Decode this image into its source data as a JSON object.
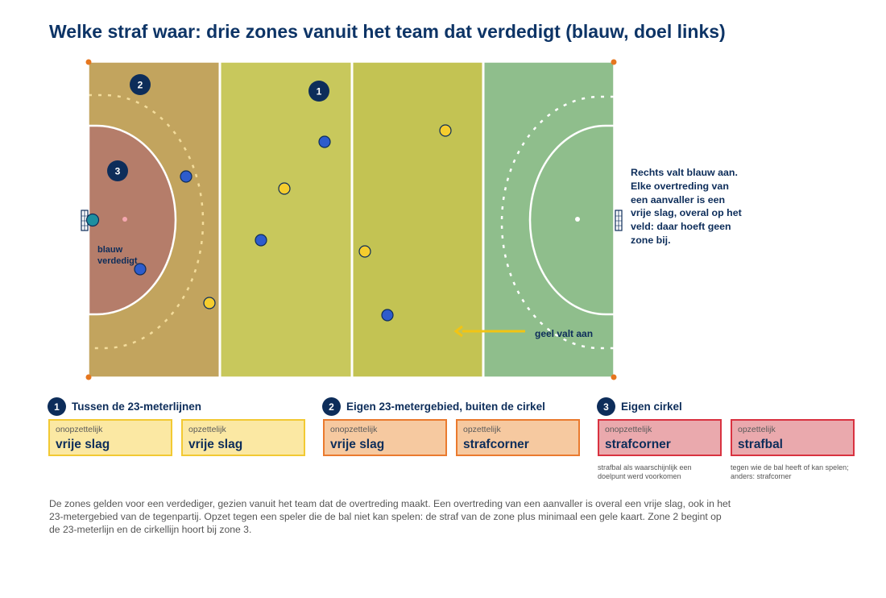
{
  "title": "Welke straf waar: drie zones vanuit het team dat verdedigt (blauw, doel links)",
  "field": {
    "zone_badges": [
      "1",
      "2",
      "3"
    ],
    "blue_defends_label": [
      "blauw",
      "verdedigt"
    ],
    "yellow_attacks_label": "geel valt aan",
    "right_note": "Rechts valt blauw aan. Elke overtreding van een aanvaller is een vrije slag, overal op het veld: daar hoeft geen zone bij."
  },
  "zones": [
    {
      "number": "1",
      "title": "Tussen de 23-meterlijnen"
    },
    {
      "number": "2",
      "title": "Eigen 23-metergebied, buiten de cirkel"
    },
    {
      "number": "3",
      "title": "Eigen cirkel"
    }
  ],
  "boxes": [
    {
      "kind": "onopzettelijk",
      "penalty": "vrije slag"
    },
    {
      "kind": "opzettelijk",
      "penalty": "vrije slag"
    },
    {
      "kind": "onopzettelijk",
      "penalty": "vrije slag"
    },
    {
      "kind": "opzettelijk",
      "penalty": "strafcorner"
    },
    {
      "kind": "onopzettelijk",
      "penalty": "strafcorner",
      "note": "strafbal als waarschijnlijk een doelpunt werd voorkomen"
    },
    {
      "kind": "opzettelijk",
      "penalty": "strafbal",
      "note": "tegen wie de bal heeft of kan spelen; anders: strafcorner"
    }
  ],
  "footer": "De zones gelden voor een verdediger, gezien vanuit het team dat de overtreding maakt. Een overtreding van een aanvaller is overal een vrije slag, ook in het 23-metergebied van de tegenpartij. Opzet tegen een speler die de bal niet kan spelen: de straf van de zone plus minimaal een gele kaart. Zone 2 begint op de 23-meterlijn en de cirkellijn hoort bij zone 3.",
  "colors": {
    "zone1": "#c8c85c",
    "zone2": "#c2a45e",
    "zone3": "#b57d6a",
    "attack_half": "#8fbe8c",
    "blue_player": "#2e5ccc",
    "yellow_player": "#f5cd2e",
    "goalkeeper": "#1d8fa0",
    "navy": "#0d2d5a"
  }
}
